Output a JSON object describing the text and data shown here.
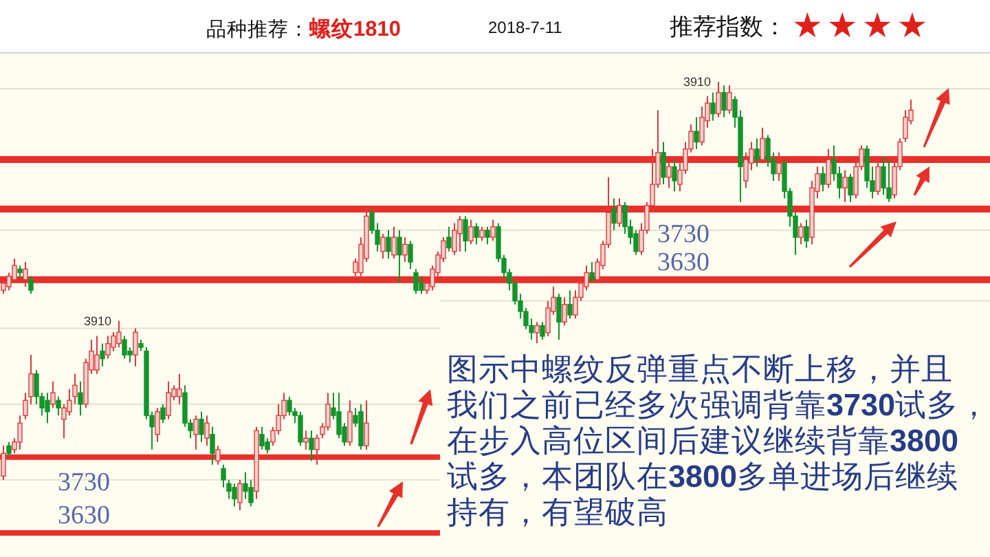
{
  "chart_data": [
    {
      "type": "other",
      "title": "品种推荐：螺纹1810",
      "subtitle": "2018-7-11",
      "annotations": [
        "推荐指数：★★★★"
      ]
    },
    {
      "type": "candlestick",
      "annotations": [
        "3910"
      ],
      "categories": [
        null,
        null,
        null,
        null,
        null,
        null,
        null,
        null,
        null,
        null,
        null,
        null,
        null,
        null,
        null,
        null,
        null,
        null,
        null,
        null,
        null,
        null,
        null,
        null,
        null,
        null,
        null,
        null,
        null,
        null,
        null,
        null,
        null,
        null,
        null,
        null,
        null,
        null,
        null,
        null,
        null,
        null,
        null,
        null,
        null,
        null,
        null,
        null,
        null,
        null,
        null,
        null,
        null,
        null,
        null,
        null,
        null,
        null,
        null,
        null,
        null,
        null,
        null,
        null,
        null,
        null,
        null,
        null,
        null,
        null,
        null,
        null,
        null,
        null,
        null,
        null,
        null,
        null,
        null,
        null,
        null,
        null,
        null,
        null,
        null,
        null,
        null,
        null,
        null,
        null,
        null,
        null,
        null,
        null,
        null,
        null,
        null,
        null,
        null,
        null,
        null,
        null,
        null,
        null,
        null,
        null,
        null,
        null,
        null,
        null,
        null,
        null,
        null,
        null,
        null,
        null,
        null,
        null,
        null,
        null,
        null,
        null,
        null,
        null,
        null,
        null,
        null,
        null,
        null,
        null,
        null,
        null,
        null,
        null,
        null,
        null,
        null,
        null,
        null,
        null,
        null,
        null,
        null,
        null,
        null,
        null,
        null,
        null,
        null,
        null,
        null,
        null,
        null,
        null,
        null,
        null,
        null,
        null,
        null,
        null,
        null,
        null,
        null,
        null,
        null,
        null,
        null,
        null,
        null,
        null,
        null,
        null,
        null,
        null,
        null,
        null,
        null,
        null,
        null,
        null
      ],
      "ohlc": [
        [
          3615,
          3630,
          3610,
          3625
        ],
        [
          3620,
          3640,
          3615,
          3635
        ],
        [
          3630,
          3660,
          3625,
          3650
        ],
        [
          3645,
          3650,
          3630,
          3640
        ],
        [
          3630,
          3655,
          3620,
          3645
        ],
        [
          3630,
          3635,
          3610,
          3615
        ],
        null,
        null,
        null,
        null,
        null,
        null,
        null,
        null,
        null,
        null,
        null,
        null,
        null,
        null,
        null,
        null,
        null,
        null,
        null,
        null,
        null,
        null,
        null,
        null,
        null,
        null,
        null,
        null,
        null,
        null,
        null,
        null,
        null,
        null,
        null,
        null,
        null,
        null,
        null,
        null,
        null,
        null,
        null,
        null,
        null,
        null,
        null,
        null,
        null,
        null,
        null,
        null,
        null,
        null,
        null,
        null,
        null,
        null,
        [
          3640,
          3660,
          3635,
          3655
        ],
        [
          3640,
          3690,
          3635,
          3680
        ],
        [
          3660,
          3735,
          3655,
          3720
        ],
        [
          3725,
          3730,
          3695,
          3700
        ],
        [
          3700,
          3710,
          3670,
          3680
        ],
        [
          3670,
          3695,
          3660,
          3690
        ],
        [
          3690,
          3700,
          3660,
          3670
        ],
        [
          3665,
          3705,
          3660,
          3690
        ],
        [
          3690,
          3700,
          3625,
          3665
        ],
        [
          3665,
          3690,
          3655,
          3680
        ],
        [
          3680,
          3685,
          3645,
          3655
        ],
        [
          3640,
          3645,
          3610,
          3615
        ],
        [
          3625,
          3635,
          3610,
          3615
        ],
        [
          3615,
          3630,
          3610,
          3625
        ],
        [
          3620,
          3650,
          3615,
          3645
        ],
        [
          3640,
          3670,
          3635,
          3665
        ],
        [
          3660,
          3690,
          3655,
          3685
        ],
        [
          3690,
          3705,
          3670,
          3675
        ],
        [
          3670,
          3710,
          3665,
          3700
        ],
        [
          3695,
          3720,
          3670,
          3715
        ],
        [
          3715,
          3720,
          3670,
          3685
        ],
        [
          3685,
          3715,
          3680,
          3705
        ],
        [
          3705,
          3710,
          3680,
          3690
        ],
        [
          3690,
          3705,
          3685,
          3700
        ],
        [
          3700,
          3705,
          3680,
          3690
        ],
        [
          3690,
          3715,
          3685,
          3705
        ],
        [
          3705,
          3710,
          3655,
          3660
        ],
        [
          3660,
          3665,
          3630,
          3640
        ],
        [
          3640,
          3645,
          3615,
          3625
        ],
        [
          3625,
          3630,
          3595,
          3600
        ],
        [
          3600,
          3610,
          3575,
          3585
        ],
        [
          3585,
          3590,
          3560,
          3565
        ],
        [
          3565,
          3575,
          3545,
          3555
        ],
        [
          3555,
          3570,
          3540,
          3565
        ],
        [
          3565,
          3570,
          3545,
          3550
        ],
        [
          3555,
          3600,
          3550,
          3590
        ],
        [
          3585,
          3620,
          3580,
          3605
        ],
        [
          3605,
          3610,
          3545,
          3570
        ],
        [
          3570,
          3605,
          3565,
          3595
        ],
        [
          3595,
          3615,
          3575,
          3580
        ],
        [
          3580,
          3615,
          3575,
          3605
        ],
        [
          3605,
          3630,
          3600,
          3625
        ],
        [
          3620,
          3650,
          3615,
          3640
        ],
        [
          3640,
          3655,
          3625,
          3630
        ],
        [
          3630,
          3660,
          3625,
          3655
        ],
        [
          3650,
          3685,
          3645,
          3680
        ],
        [
          3680,
          3775,
          3675,
          3725
        ],
        [
          3730,
          3745,
          3700,
          3710
        ],
        [
          3710,
          3745,
          3705,
          3735
        ],
        [
          3735,
          3740,
          3695,
          3705
        ],
        [
          3705,
          3715,
          3680,
          3690
        ],
        [
          3695,
          3700,
          3665,
          3670
        ],
        [
          3670,
          3710,
          3665,
          3700
        ],
        [
          3700,
          3740,
          3695,
          3735
        ],
        [
          3735,
          3815,
          3730,
          3765
        ],
        [
          3765,
          3870,
          3760,
          3810
        ],
        [
          3810,
          3825,
          3765,
          3775
        ],
        [
          3775,
          3800,
          3760,
          3790
        ],
        [
          3790,
          3800,
          3755,
          3770
        ],
        [
          3765,
          3795,
          3755,
          3785
        ],
        [
          3785,
          3825,
          3780,
          3815
        ],
        [
          3815,
          3850,
          3810,
          3840
        ],
        [
          3840,
          3860,
          3815,
          3825
        ],
        [
          3825,
          3875,
          3820,
          3860
        ],
        [
          3855,
          3890,
          3845,
          3880
        ],
        [
          3880,
          3895,
          3855,
          3865
        ],
        [
          3865,
          3910,
          3860,
          3895
        ],
        [
          3895,
          3905,
          3860,
          3870
        ],
        [
          3870,
          3905,
          3865,
          3895
        ],
        [
          3885,
          3890,
          3845,
          3860
        ],
        [
          3860,
          3870,
          3740,
          3790
        ],
        [
          3770,
          3810,
          3760,
          3800
        ],
        [
          3795,
          3825,
          3785,
          3815
        ],
        [
          3815,
          3830,
          3790,
          3800
        ],
        [
          3800,
          3845,
          3795,
          3830
        ],
        [
          3830,
          3835,
          3790,
          3800
        ],
        [
          3800,
          3810,
          3770,
          3780
        ],
        [
          3780,
          3810,
          3770,
          3795
        ],
        [
          3795,
          3800,
          3745,
          3755
        ],
        [
          3755,
          3760,
          3705,
          3720
        ],
        [
          3720,
          3725,
          3665,
          3690
        ],
        [
          3690,
          3710,
          3680,
          3705
        ],
        [
          3705,
          3715,
          3675,
          3685
        ],
        [
          3690,
          3770,
          3680,
          3760
        ],
        [
          3755,
          3790,
          3745,
          3780
        ],
        [
          3780,
          3790,
          3755,
          3765
        ],
        [
          3765,
          3815,
          3760,
          3800
        ],
        [
          3800,
          3820,
          3770,
          3780
        ],
        [
          3780,
          3790,
          3745,
          3760
        ],
        [
          3760,
          3785,
          3740,
          3775
        ],
        [
          3775,
          3780,
          3740,
          3750
        ],
        [
          3750,
          3800,
          3745,
          3790
        ],
        [
          3790,
          3820,
          3785,
          3815
        ],
        [
          3815,
          3820,
          3760,
          3770
        ],
        [
          3770,
          3790,
          3745,
          3755
        ],
        [
          3755,
          3800,
          3750,
          3790
        ],
        [
          3790,
          3805,
          3750,
          3760
        ],
        [
          3760,
          3800,
          3740,
          3745
        ],
        [
          3750,
          3800,
          3745,
          3790
        ],
        [
          3790,
          3830,
          3785,
          3825
        ],
        [
          3830,
          3870,
          3825,
          3860
        ],
        [
          3855,
          3885,
          3850,
          3870
        ],
        null,
        null,
        null,
        null,
        null,
        null,
        null,
        null,
        null,
        null,
        null,
        null,
        null,
        null
      ],
      "ylim": [
        3510,
        3950
      ],
      "yticks": [
        {
          "value": 3600,
          "label": null
        },
        {
          "value": 3700,
          "label": null
        },
        {
          "value": 3800,
          "label": null
        },
        {
          "value": 3900,
          "label": null
        }
      ],
      "grid": "y",
      "tick_labels": false,
      "ref_lines": [
        {
          "axis": "y",
          "value": 3730,
          "label": "3730",
          "color": "#e8302a"
        },
        {
          "axis": "y",
          "value": 3630,
          "label": "3630",
          "color": "#e8302a"
        },
        {
          "axis": "y",
          "value": 3800,
          "color": "#e8302a"
        }
      ]
    },
    {
      "type": "candlestick",
      "annotations": [
        "3910"
      ],
      "categories": [
        null,
        null,
        null,
        null,
        null,
        null,
        null,
        null,
        null,
        null,
        null,
        null,
        null,
        null,
        null,
        null,
        null,
        null,
        null,
        null,
        null,
        null,
        null,
        null,
        null,
        null,
        null,
        null,
        null,
        null,
        null,
        null,
        null,
        null,
        null,
        null,
        null,
        null,
        null,
        null,
        null,
        null,
        null,
        null,
        null,
        null,
        null,
        null,
        null,
        null,
        null,
        null,
        null,
        null,
        null,
        null,
        null,
        null,
        null,
        null,
        null,
        null,
        null,
        null,
        null,
        null,
        null,
        null,
        null,
        null,
        null,
        null,
        null,
        null,
        null,
        null,
        null,
        null,
        null,
        null
      ],
      "ohlc": [
        [
          3705,
          3745,
          3700,
          3735
        ],
        [
          3745,
          3750,
          3730,
          3735
        ],
        [
          3740,
          3755,
          3735,
          3750
        ],
        [
          3750,
          3785,
          3740,
          3775
        ],
        [
          3785,
          3815,
          3780,
          3805
        ],
        [
          3810,
          3865,
          3800,
          3840
        ],
        [
          3840,
          3845,
          3800,
          3810
        ],
        [
          3810,
          3815,
          3785,
          3795
        ],
        [
          3805,
          3815,
          3775,
          3790
        ],
        [
          3800,
          3830,
          3795,
          3815
        ],
        [
          3805,
          3810,
          3785,
          3795
        ],
        [
          3780,
          3800,
          3755,
          3795
        ],
        [
          3790,
          3820,
          3785,
          3805
        ],
        [
          3810,
          3840,
          3800,
          3825
        ],
        [
          3815,
          3830,
          3785,
          3800
        ],
        [
          3800,
          3860,
          3795,
          3855
        ],
        [
          3845,
          3885,
          3840,
          3870
        ],
        [
          3845,
          3890,
          3840,
          3865
        ],
        [
          3870,
          3880,
          3850,
          3860
        ],
        [
          3865,
          3890,
          3860,
          3880
        ],
        [
          3875,
          3895,
          3870,
          3890
        ],
        [
          3880,
          3910,
          3875,
          3895
        ],
        [
          3885,
          3890,
          3860,
          3865
        ],
        [
          3870,
          3875,
          3855,
          3865
        ],
        [
          3865,
          3900,
          3850,
          3895
        ],
        [
          3880,
          3885,
          3870,
          3875
        ],
        [
          3870,
          3875,
          3780,
          3785
        ],
        [
          3785,
          3790,
          3740,
          3770
        ],
        [
          3760,
          3795,
          3750,
          3790
        ],
        [
          3795,
          3800,
          3775,
          3780
        ],
        [
          3785,
          3830,
          3780,
          3815
        ],
        [
          3810,
          3825,
          3805,
          3820
        ],
        [
          3810,
          3840,
          3800,
          3820
        ],
        [
          3815,
          3825,
          3770,
          3775
        ],
        [
          3775,
          3780,
          3755,
          3765
        ],
        [
          3760,
          3785,
          3740,
          3780
        ],
        [
          3780,
          3790,
          3750,
          3760
        ],
        [
          3755,
          3785,
          3745,
          3775
        ],
        [
          3760,
          3770,
          3720,
          3735
        ],
        [
          3725,
          3745,
          3720,
          3740
        ],
        [
          3715,
          3720,
          3690,
          3700
        ],
        [
          3695,
          3700,
          3675,
          3685
        ],
        [
          3690,
          3695,
          3665,
          3675
        ],
        [
          3670,
          3700,
          3660,
          3695
        ],
        [
          3695,
          3710,
          3675,
          3685
        ],
        [
          3690,
          3700,
          3665,
          3670
        ],
        [
          3685,
          3770,
          3675,
          3765
        ],
        [
          3760,
          3770,
          3740,
          3745
        ],
        [
          3750,
          3755,
          3735,
          3740
        ],
        [
          3750,
          3770,
          3745,
          3765
        ],
        [
          3765,
          3800,
          3760,
          3785
        ],
        [
          3785,
          3815,
          3780,
          3805
        ],
        [
          3805,
          3810,
          3785,
          3790
        ],
        [
          3790,
          3795,
          3775,
          3785
        ],
        [
          3785,
          3790,
          3745,
          3750
        ],
        [
          3750,
          3765,
          3740,
          3755
        ],
        [
          3755,
          3765,
          3725,
          3740
        ],
        [
          3740,
          3760,
          3720,
          3755
        ],
        [
          3760,
          3775,
          3755,
          3770
        ],
        [
          3770,
          3815,
          3765,
          3800
        ],
        [
          3795,
          3815,
          3780,
          3785
        ],
        [
          3790,
          3815,
          3755,
          3760
        ],
        [
          3770,
          3775,
          3745,
          3750
        ],
        [
          3750,
          3805,
          3745,
          3790
        ],
        [
          3785,
          3795,
          3770,
          3775
        ],
        [
          3790,
          3800,
          3740,
          3745
        ],
        [
          3745,
          3805,
          3740,
          3775
        ],
        null,
        null,
        null,
        null,
        null,
        null,
        null,
        null,
        null,
        null,
        null,
        null,
        null
      ],
      "ylim": [
        3600,
        3945
      ],
      "yticks": [
        {
          "value": 3700,
          "label": null
        },
        {
          "value": 3800,
          "label": null
        },
        {
          "value": 3900,
          "label": null
        }
      ],
      "grid": "y",
      "tick_labels": false,
      "ref_lines": [
        {
          "axis": "y",
          "value": 3730,
          "label": "3730",
          "color": "#e8302a"
        },
        {
          "axis": "y",
          "value": 3630,
          "label": "3630",
          "color": "#e8302a"
        }
      ]
    },
    {
      "type": "other",
      "annotations": [
        "图示中螺纹反弹重点不断上移，并且",
        "我们之前已经多次强调背靠3730试多，",
        "在步入高位区间后建议继续背靠3800",
        "试多，本团队在3800多单进场后继续",
        "持有，有望破高"
      ]
    }
  ]
}
